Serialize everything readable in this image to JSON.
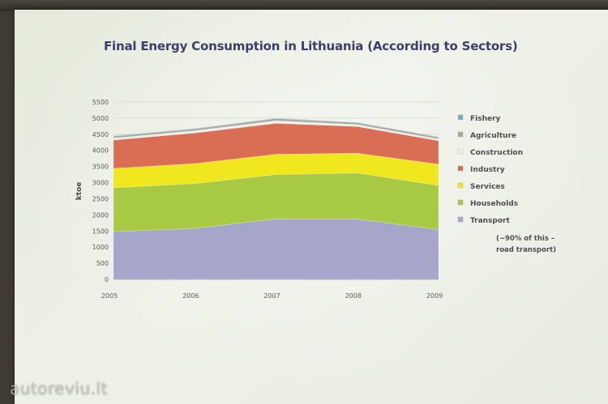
{
  "chart_data": {
    "type": "area",
    "stacked": true,
    "title": "Final Energy Consumption in  Lithuania (According to Sectors)",
    "ylabel": "ktoe",
    "xlabel": "",
    "categories": [
      "2005",
      "2006",
      "2007",
      "2008",
      "2009"
    ],
    "ylim": [
      0,
      5500
    ],
    "yticks": [
      0,
      500,
      1000,
      1500,
      2000,
      2500,
      3000,
      3500,
      4000,
      4500,
      5000,
      5500
    ],
    "series": [
      {
        "name": "Transport",
        "color": "#a6a6cb",
        "values": [
          1480,
          1580,
          1880,
          1870,
          1540
        ]
      },
      {
        "name": "Households",
        "color": "#a8c943",
        "values": [
          1360,
          1390,
          1370,
          1430,
          1370
        ]
      },
      {
        "name": "Services",
        "color": "#f0e81c",
        "values": [
          600,
          620,
          630,
          610,
          660
        ]
      },
      {
        "name": "Industry",
        "color": "#d96e55",
        "values": [
          880,
          950,
          960,
          830,
          730
        ]
      },
      {
        "name": "Construction",
        "color": "#eef0ea",
        "values": [
          60,
          70,
          80,
          60,
          50
        ]
      },
      {
        "name": "Agriculture",
        "color": "#a9a9a4",
        "values": [
          60,
          60,
          70,
          60,
          60
        ]
      },
      {
        "name": "Fishery",
        "color": "#6fb1c9",
        "values": [
          10,
          10,
          10,
          10,
          10
        ]
      }
    ],
    "legend_order": [
      "Fishery",
      "Agriculture",
      "Construction",
      "Industry",
      "Services",
      "Households",
      "Transport"
    ],
    "legend_position": "right",
    "annotation": [
      "(~90% of this –",
      "road transport)"
    ]
  },
  "watermark": "autoreviu.lt"
}
